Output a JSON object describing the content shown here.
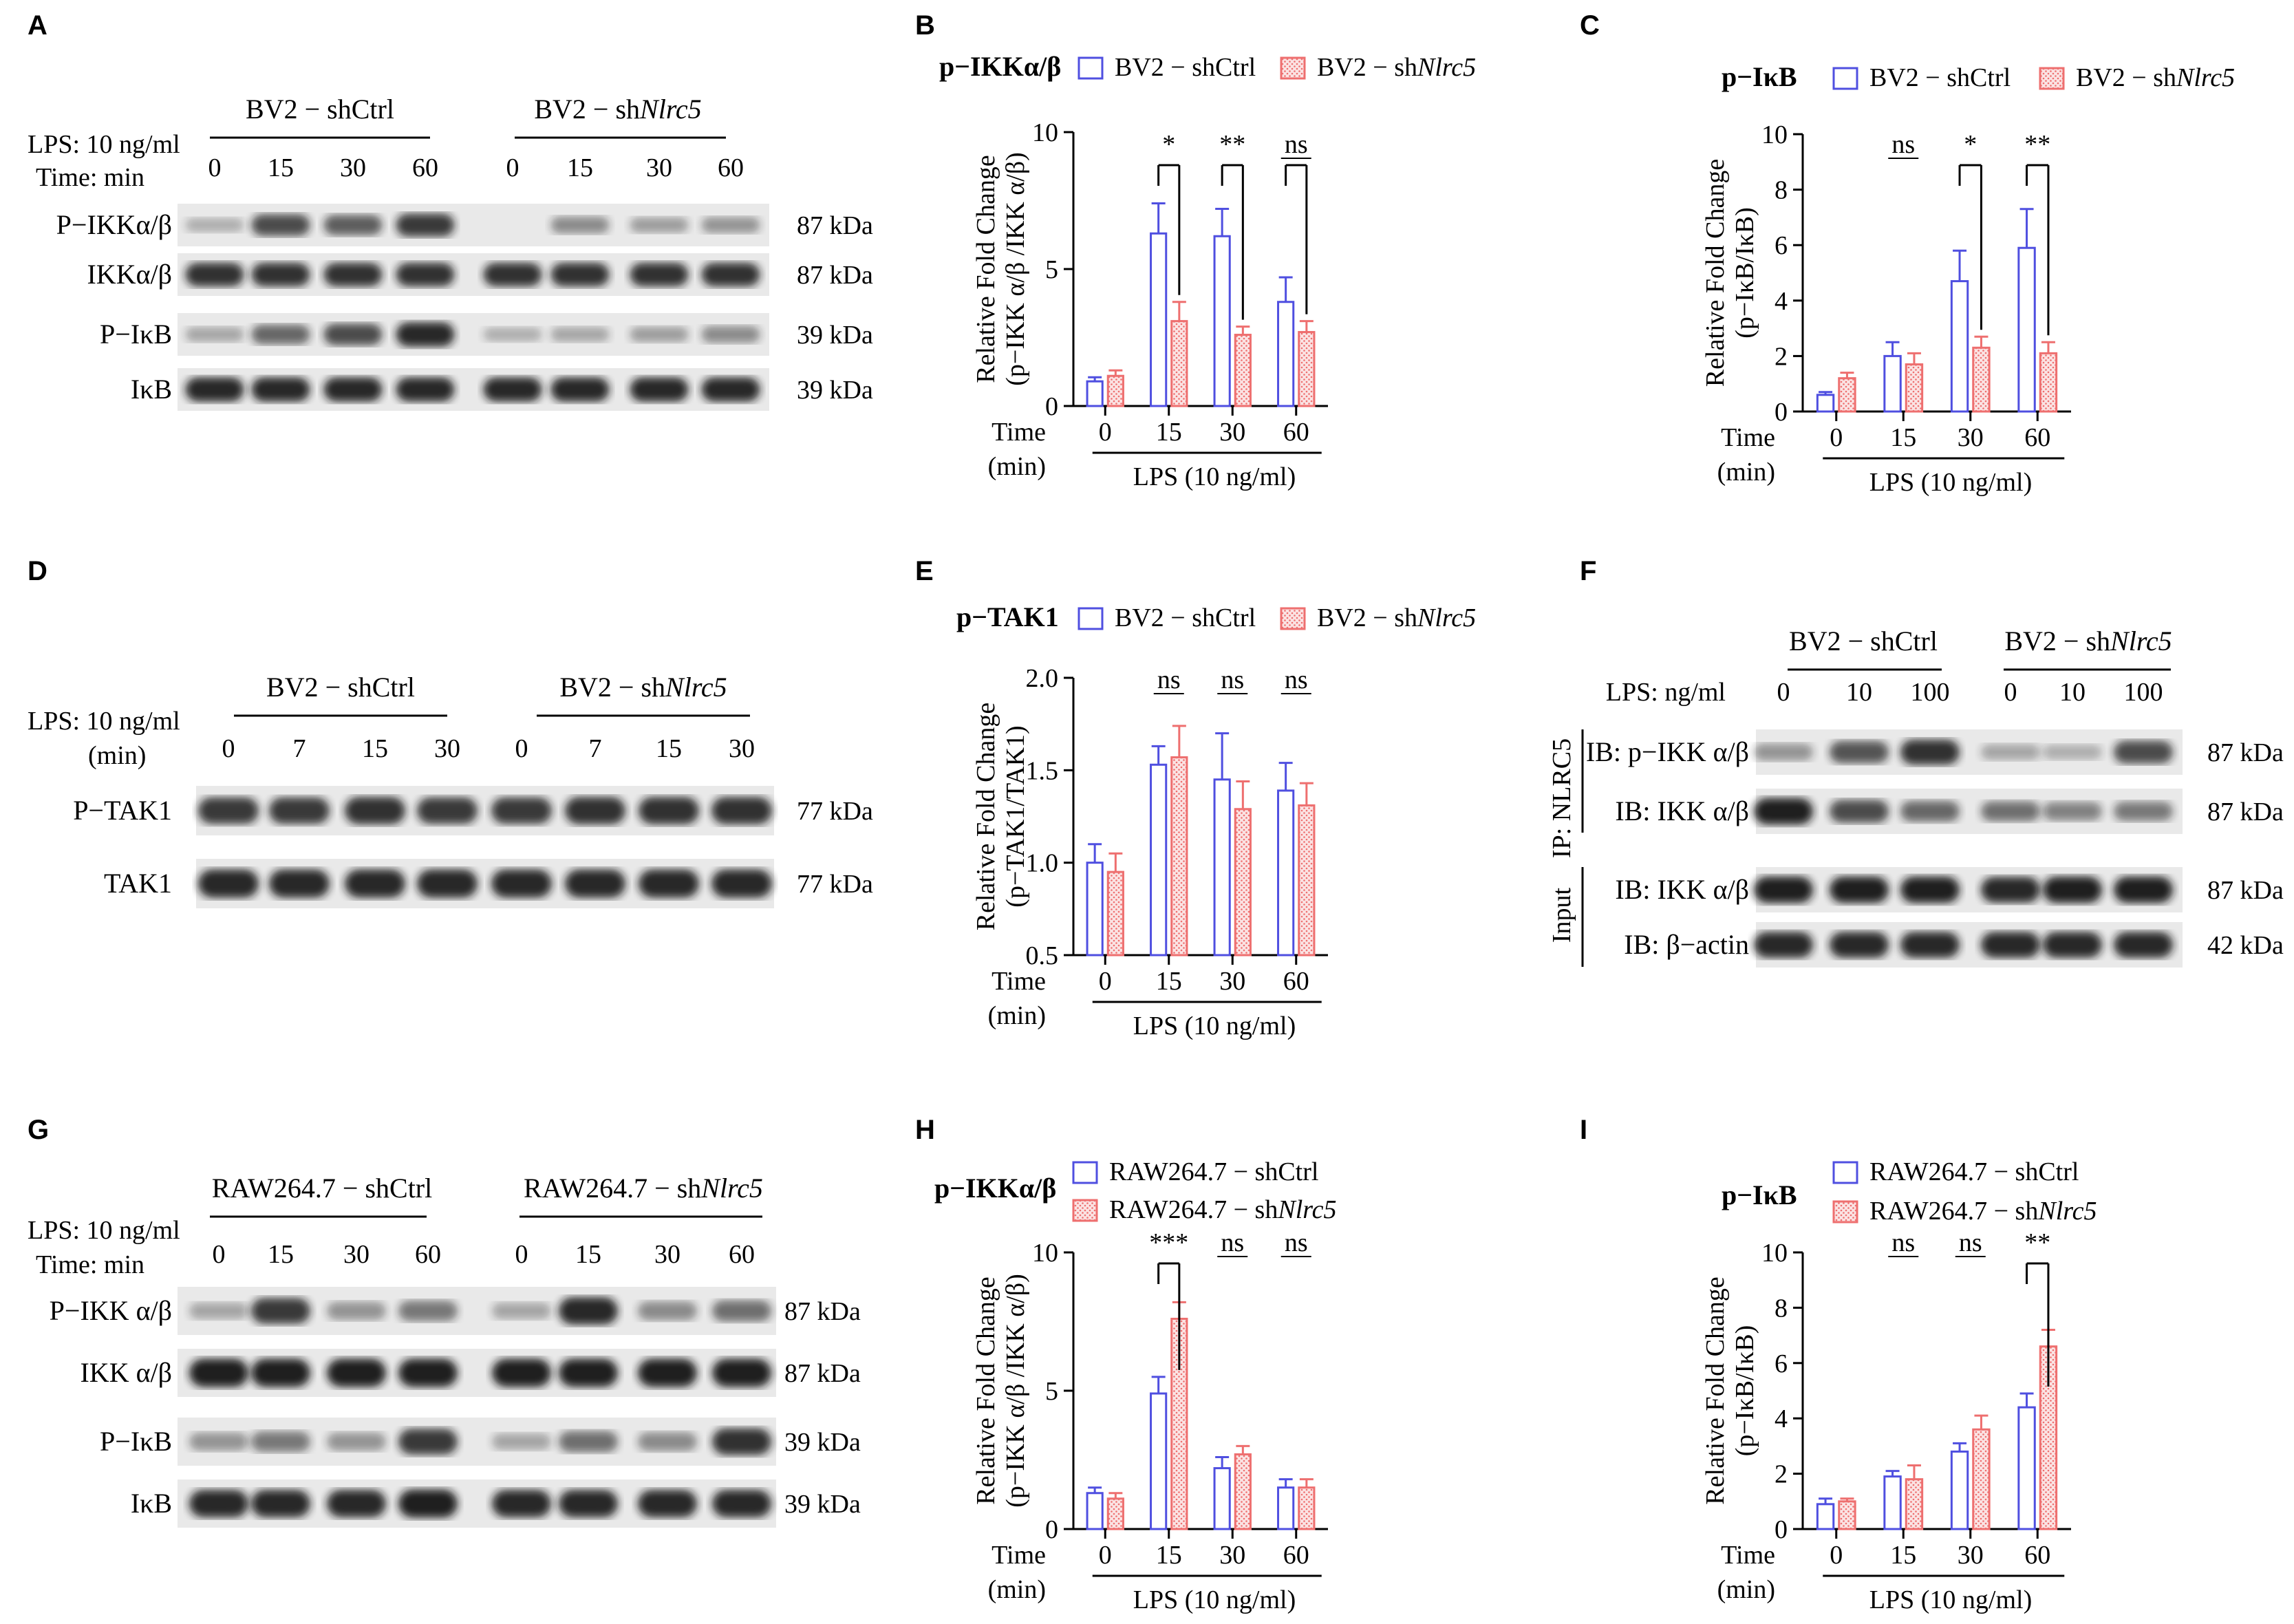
{
  "colors": {
    "ctrl": "#4f4fe0",
    "kd": "#ee6f6f",
    "kd_fill": "#f8c8c8",
    "blot_bg": "#e9e9e9",
    "band": "#141414"
  },
  "panels": {
    "A": {
      "label": "A",
      "groups": [
        "BV2 − shCtrl",
        "BV2 − sh",
        "Nlrc5"
      ],
      "row_lps": "LPS: 10 ng/ml",
      "row_time": "Time: min",
      "times": [
        "0",
        "15",
        "30",
        "60",
        "0",
        "15",
        "30",
        "60"
      ],
      "blots": [
        {
          "label": "P−IKKα/β",
          "kda": "87 kDa",
          "intensity": [
            0.15,
            0.7,
            0.6,
            0.8,
            0.0,
            0.35,
            0.25,
            0.3
          ]
        },
        {
          "label": "IKKα/β",
          "kda": "87 kDa",
          "intensity": [
            0.85,
            0.85,
            0.85,
            0.85,
            0.85,
            0.85,
            0.85,
            0.85
          ]
        },
        {
          "label": "P−IκB",
          "kda": "39 kDa",
          "intensity": [
            0.2,
            0.55,
            0.7,
            0.9,
            0.15,
            0.2,
            0.25,
            0.35
          ]
        },
        {
          "label": "IκB",
          "kda": "39 kDa",
          "intensity": [
            0.9,
            0.9,
            0.9,
            0.9,
            0.9,
            0.9,
            0.9,
            0.9
          ]
        }
      ]
    },
    "D": {
      "label": "D",
      "groups": [
        "BV2 − shCtrl",
        "BV2 − sh",
        "Nlrc5"
      ],
      "row_lps": "LPS: 10 ng/ml",
      "row_time": "(min)",
      "times": [
        "0",
        "7",
        "15",
        "30",
        "0",
        "7",
        "15",
        "30"
      ],
      "blots": [
        {
          "label": "P−TAK1",
          "kda": "77 kDa",
          "intensity": [
            0.8,
            0.8,
            0.85,
            0.8,
            0.8,
            0.85,
            0.85,
            0.85
          ]
        },
        {
          "label": "TAK1",
          "kda": "77 kDa",
          "intensity": [
            0.9,
            0.9,
            0.9,
            0.9,
            0.9,
            0.9,
            0.9,
            0.9
          ]
        }
      ]
    },
    "F": {
      "label": "F",
      "groups": [
        "BV2 − shCtrl",
        "BV2 − sh",
        "Nlrc5"
      ],
      "row_lps": "LPS: ng/ml",
      "doses": [
        "0",
        "10",
        "100",
        "0",
        "10",
        "100"
      ],
      "ip_label": "IP:  NLRC5",
      "input_label": "Input",
      "blots": [
        {
          "label": "IB: p−IKK α/β",
          "kda": "87 kDa",
          "intensity": [
            0.3,
            0.65,
            0.85,
            0.2,
            0.15,
            0.7
          ]
        },
        {
          "label": "IB:  IKK α/β",
          "kda": "87 kDa",
          "intensity": [
            0.95,
            0.7,
            0.55,
            0.5,
            0.4,
            0.45
          ]
        },
        {
          "label": "IB:  IKK α/β",
          "kda": "87 kDa",
          "intensity": [
            0.95,
            0.95,
            0.95,
            0.9,
            0.95,
            0.95
          ]
        },
        {
          "label": "IB:   β−actin",
          "kda": "42 kDa",
          "intensity": [
            0.9,
            0.9,
            0.9,
            0.9,
            0.9,
            0.9
          ]
        }
      ]
    },
    "G": {
      "label": "G",
      "groups": [
        "RAW264.7 − shCtrl",
        "RAW264.7 − sh",
        "Nlrc5"
      ],
      "row_lps": "LPS: 10 ng/ml",
      "row_time": "Time:  min",
      "times": [
        "0",
        "15",
        "30",
        "60",
        "0",
        "15",
        "30",
        "60"
      ],
      "blots": [
        {
          "label": "P−IKK α/β",
          "kda": "87 kDa",
          "intensity": [
            0.2,
            0.8,
            0.3,
            0.45,
            0.2,
            0.9,
            0.35,
            0.5
          ]
        },
        {
          "label": "IKK α/β",
          "kda": "87 kDa",
          "intensity": [
            0.95,
            0.95,
            0.95,
            0.95,
            0.95,
            0.95,
            0.95,
            0.95
          ]
        },
        {
          "label": "P−IκB",
          "kda": "39 kDa",
          "intensity": [
            0.3,
            0.45,
            0.3,
            0.8,
            0.2,
            0.5,
            0.35,
            0.85
          ]
        },
        {
          "label": "IκB",
          "kda": "39 kDa",
          "intensity": [
            0.9,
            0.9,
            0.9,
            0.95,
            0.9,
            0.9,
            0.9,
            0.9
          ]
        }
      ]
    }
  },
  "chart_data": [
    {
      "panel": "B",
      "type": "bar",
      "title": "p−IKKα/β",
      "legend": [
        "BV2 − shCtrl",
        "BV2 − sh",
        "Nlrc5"
      ],
      "ylabel1": "Relative Fold Change",
      "ylabel2": "(p−IKK α/β /IKK α/β)",
      "xlabel": "LPS (10 ng/ml)",
      "xtitle1": "Time",
      "xtitle2": "(min)",
      "categories": [
        "0",
        "15",
        "30",
        "60"
      ],
      "yticks": [
        "0",
        "5",
        "10"
      ],
      "ylim": [
        0,
        10
      ],
      "ctrl": [
        0.9,
        6.3,
        6.2,
        3.8
      ],
      "ctrl_err": [
        0.15,
        1.1,
        1.0,
        0.9
      ],
      "kd": [
        1.1,
        3.1,
        2.6,
        2.7
      ],
      "kd_err": [
        0.2,
        0.7,
        0.3,
        0.4
      ],
      "sig": [
        "",
        "*",
        "**",
        "ns"
      ]
    },
    {
      "panel": "C",
      "type": "bar",
      "title": "p−IκB",
      "legend": [
        "BV2 − shCtrl",
        "BV2 − sh",
        "Nlrc5"
      ],
      "ylabel1": "Relative Fold Change",
      "ylabel2": "(p−IκB/IκB)",
      "xlabel": "LPS (10 ng/ml)",
      "xtitle1": "Time",
      "xtitle2": "(min)",
      "categories": [
        "0",
        "15",
        "30",
        "60"
      ],
      "yticks": [
        "0",
        "2",
        "4",
        "6",
        "8",
        "10"
      ],
      "ylim": [
        0,
        10
      ],
      "ctrl": [
        0.6,
        2.0,
        4.7,
        5.9
      ],
      "ctrl_err": [
        0.1,
        0.5,
        1.1,
        1.4
      ],
      "kd": [
        1.2,
        1.7,
        2.3,
        2.1
      ],
      "kd_err": [
        0.2,
        0.4,
        0.4,
        0.4
      ],
      "sig": [
        "",
        "ns",
        "*",
        "**"
      ]
    },
    {
      "panel": "E",
      "type": "bar",
      "title": "p−TAK1",
      "legend": [
        "BV2 − shCtrl",
        "BV2 − sh",
        "Nlrc5"
      ],
      "ylabel1": "Relative Fold Change",
      "ylabel2": "(p−TAK1/TAK1)",
      "xlabel": "LPS (10 ng/ml)",
      "xtitle1": "Time",
      "xtitle2": "(min)",
      "categories": [
        "0",
        "15",
        "30",
        "60"
      ],
      "yticks": [
        "0.5",
        "1.0",
        "1.5",
        "2.0"
      ],
      "ylim": [
        0.5,
        2.0
      ],
      "ctrl": [
        1.0,
        1.53,
        1.45,
        1.39
      ],
      "ctrl_err": [
        0.1,
        0.1,
        0.25,
        0.15
      ],
      "kd": [
        0.95,
        1.57,
        1.29,
        1.31
      ],
      "kd_err": [
        0.1,
        0.17,
        0.15,
        0.12
      ],
      "sig": [
        "",
        "ns",
        "ns",
        "ns"
      ]
    },
    {
      "panel": "H",
      "type": "bar",
      "title": "p−IKKα/β",
      "legend": [
        "RAW264.7 − shCtrl",
        "RAW264.7 − sh",
        "Nlrc5"
      ],
      "ylabel1": "Relative Fold Change",
      "ylabel2": "(p−IKK α/β /IKK α/β)",
      "xlabel": "LPS (10 ng/ml)",
      "xtitle1": "Time",
      "xtitle2": "(min)",
      "categories": [
        "0",
        "15",
        "30",
        "60"
      ],
      "yticks": [
        "0",
        "5",
        "10"
      ],
      "ylim": [
        0,
        10
      ],
      "ctrl": [
        1.3,
        4.9,
        2.2,
        1.5
      ],
      "ctrl_err": [
        0.2,
        0.6,
        0.4,
        0.3
      ],
      "kd": [
        1.1,
        7.6,
        2.7,
        1.5
      ],
      "kd_err": [
        0.2,
        0.6,
        0.3,
        0.3
      ],
      "sig": [
        "",
        "***",
        "ns",
        "ns"
      ]
    },
    {
      "panel": "I",
      "type": "bar",
      "title": "p−IκB",
      "legend": [
        "RAW264.7 − shCtrl",
        "RAW264.7 − sh",
        "Nlrc5"
      ],
      "ylabel1": "Relative Fold Change",
      "ylabel2": "(p−IκB/IκB)",
      "xlabel": "LPS (10 ng/ml)",
      "xtitle1": "Time",
      "xtitle2": "(min)",
      "categories": [
        "0",
        "15",
        "30",
        "60"
      ],
      "yticks": [
        "0",
        "2",
        "4",
        "6",
        "8",
        "10"
      ],
      "ylim": [
        0,
        10
      ],
      "ctrl": [
        0.9,
        1.9,
        2.8,
        4.4
      ],
      "ctrl_err": [
        0.2,
        0.2,
        0.3,
        0.5
      ],
      "kd": [
        1.0,
        1.8,
        3.6,
        6.6
      ],
      "kd_err": [
        0.1,
        0.5,
        0.5,
        0.6
      ],
      "sig": [
        "",
        "ns",
        "ns",
        "**"
      ]
    }
  ]
}
